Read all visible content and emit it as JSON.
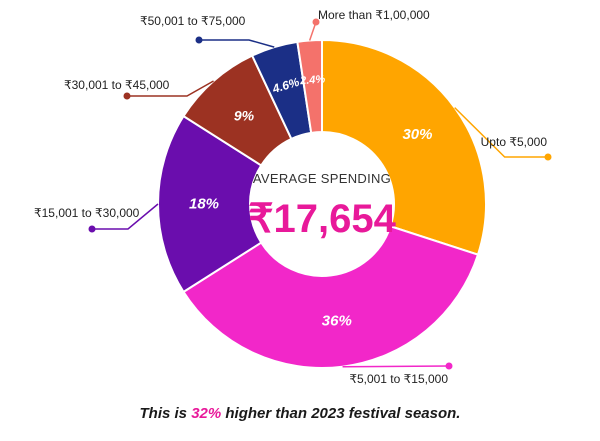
{
  "chart_data": {
    "type": "pie",
    "center_title": "AVERAGE SPENDING",
    "center_value": "₹17,654",
    "slices": [
      {
        "category": "Upto ₹5,000",
        "value": 30,
        "label": "30%",
        "color": "#ffa500"
      },
      {
        "category": "₹5,001 to ₹15,000",
        "value": 36,
        "label": "36%",
        "color": "#f227c9"
      },
      {
        "category": "₹15,001 to ₹30,000",
        "value": 18,
        "label": "18%",
        "color": "#6a0dad"
      },
      {
        "category": "₹30,001 to ₹45,000",
        "value": 9,
        "label": "9%",
        "color": "#9c3222"
      },
      {
        "category": "₹50,001 to ₹75,000",
        "value": 4.6,
        "label": "4.6%",
        "color": "#1b2f86"
      },
      {
        "category": "More than ₹1,00,000",
        "value": 2.4,
        "label": "2.4%",
        "color": "#f4726b"
      }
    ]
  },
  "footer": {
    "prefix": "This is ",
    "highlight": "32%",
    "suffix": " higher than 2023 festival season."
  },
  "colors": {
    "accent": "#e8199a"
  }
}
